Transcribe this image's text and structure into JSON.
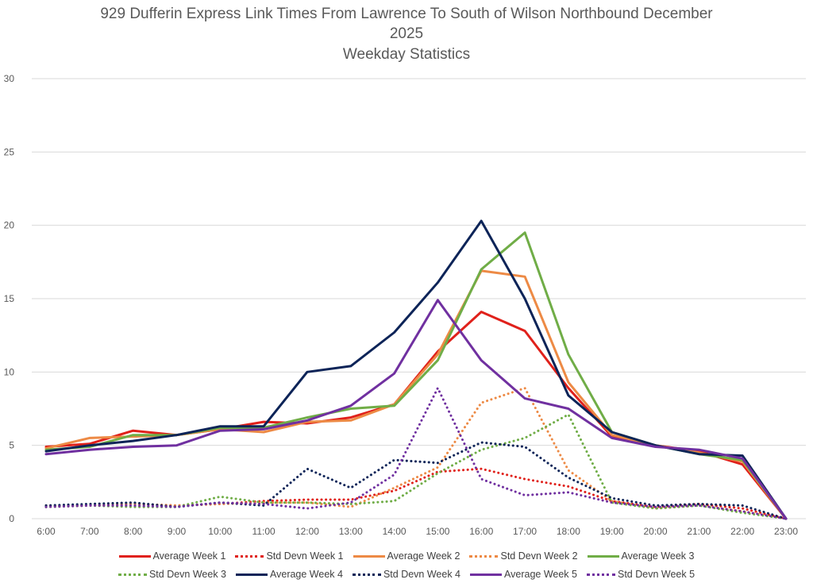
{
  "chart_data": {
    "type": "line",
    "title": "929 Dufferin Express Link Times From Lawrence To South of Wilson Northbound December 2025",
    "title_lines": [
      "929 Dufferin Express Link Times From Lawrence To South of Wilson Northbound December",
      "2025",
      "Weekday Statistics"
    ],
    "subtitle": "Weekday Statistics",
    "xlabel": "",
    "ylabel": "",
    "ylim": [
      0,
      30
    ],
    "yticks": [
      "0",
      "5",
      "10",
      "15",
      "20",
      "25",
      "30"
    ],
    "ytick_values": [
      0,
      5,
      10,
      15,
      20,
      25,
      30
    ],
    "grid": true,
    "legend_position": "bottom",
    "categories": [
      "6:00",
      "7:00",
      "8:00",
      "9:00",
      "10:00",
      "11:00",
      "12:00",
      "13:00",
      "14:00",
      "15:00",
      "16:00",
      "17:00",
      "18:00",
      "19:00",
      "20:00",
      "21:00",
      "22:00",
      "23:00"
    ],
    "series": [
      {
        "name": "Average Week 1",
        "color": "#E0211B",
        "style": "solid",
        "values": [
          4.9,
          5.1,
          6.0,
          5.7,
          6.1,
          6.6,
          6.5,
          6.9,
          7.8,
          11.4,
          14.1,
          12.8,
          8.9,
          5.6,
          5.0,
          4.6,
          3.7,
          0.0
        ]
      },
      {
        "name": "Std Devn Week 1",
        "color": "#E0211B",
        "style": "dotted",
        "values": [
          0.9,
          0.9,
          1.0,
          0.9,
          1.0,
          1.2,
          1.3,
          1.3,
          1.9,
          3.2,
          3.4,
          2.7,
          2.2,
          1.2,
          0.8,
          1.0,
          0.7,
          0.0
        ]
      },
      {
        "name": "Average Week 2",
        "color": "#ED8A45",
        "style": "solid",
        "values": [
          4.8,
          5.5,
          5.6,
          5.7,
          6.1,
          5.9,
          6.6,
          6.7,
          7.8,
          11.2,
          16.9,
          16.5,
          9.3,
          5.7,
          5.0,
          4.5,
          3.9,
          0.0
        ]
      },
      {
        "name": "Std Devn Week 2",
        "color": "#ED8A45",
        "style": "dotted",
        "values": [
          0.8,
          0.9,
          1.0,
          0.9,
          1.0,
          1.1,
          1.1,
          0.8,
          2.1,
          3.5,
          7.9,
          8.9,
          3.3,
          1.2,
          0.7,
          0.9,
          0.5,
          0.0
        ]
      },
      {
        "name": "Average Week 3",
        "color": "#70AD47",
        "style": "solid",
        "values": [
          4.7,
          4.9,
          5.7,
          5.7,
          6.2,
          6.2,
          6.9,
          7.5,
          7.7,
          10.8,
          17.0,
          19.5,
          11.2,
          5.9,
          5.0,
          4.4,
          4.0,
          0.0
        ]
      },
      {
        "name": "Std Devn Week 3",
        "color": "#70AD47",
        "style": "dotted",
        "values": [
          0.8,
          0.9,
          0.8,
          0.8,
          1.5,
          1.1,
          1.1,
          1.0,
          1.2,
          3.1,
          4.7,
          5.5,
          7.1,
          1.1,
          0.7,
          0.9,
          0.4,
          0.0
        ]
      },
      {
        "name": "Average Week 4",
        "color": "#0D2458",
        "style": "solid",
        "values": [
          4.6,
          5.0,
          5.3,
          5.7,
          6.3,
          6.3,
          10.0,
          10.4,
          12.7,
          16.1,
          20.3,
          15.0,
          8.4,
          5.9,
          5.0,
          4.4,
          4.3,
          0.0
        ]
      },
      {
        "name": "Std Devn Week 4",
        "color": "#0D2458",
        "style": "dotted",
        "values": [
          0.9,
          1.0,
          1.1,
          0.8,
          1.1,
          0.9,
          3.4,
          2.1,
          4.0,
          3.8,
          5.2,
          4.9,
          2.8,
          1.4,
          0.9,
          1.0,
          0.9,
          0.0
        ]
      },
      {
        "name": "Average Week 5",
        "color": "#7030A0",
        "style": "solid",
        "values": [
          4.4,
          4.7,
          4.9,
          5.0,
          6.0,
          6.1,
          6.7,
          7.7,
          9.9,
          14.9,
          10.8,
          8.2,
          7.5,
          5.5,
          4.9,
          4.7,
          4.1,
          0.0
        ]
      },
      {
        "name": "Std Devn Week 5",
        "color": "#7030A0",
        "style": "dotted",
        "values": [
          0.8,
          0.9,
          0.9,
          0.8,
          1.1,
          1.0,
          0.7,
          1.1,
          3.0,
          8.9,
          2.7,
          1.6,
          1.8,
          1.1,
          0.8,
          0.9,
          0.5,
          0.0
        ]
      }
    ]
  }
}
